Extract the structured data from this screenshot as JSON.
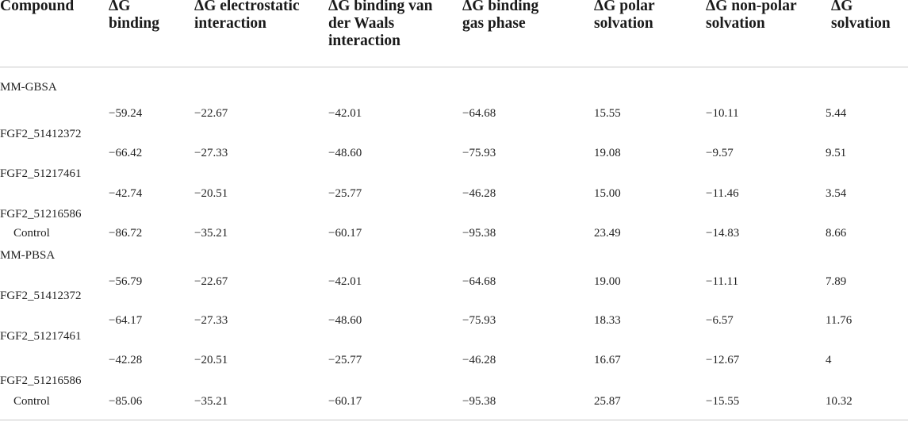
{
  "headers": [
    "ΔG\nbinding",
    "ΔG electrostatic\ninteraction",
    "ΔG binding van\nder Waals\ninteraction",
    "ΔG binding\ngas phase",
    "ΔG polar\nsolvation",
    "ΔG non-polar\nsolvation",
    "ΔG\nsolvation"
  ],
  "compound_header": "Compound",
  "sections": [
    {
      "name": "MM-GBSA",
      "rows": [
        {
          "compound": "FGF2_51412372",
          "values": [
            "−59.24",
            "−22.67",
            "−42.01",
            "−64.68",
            "15.55",
            "−10.11",
            "5.44"
          ]
        },
        {
          "compound": "FGF2_51217461",
          "values": [
            "−66.42",
            "−27.33",
            "−48.60",
            "−75.93",
            "19.08",
            "−9.57",
            "9.51"
          ]
        },
        {
          "compound": "FGF2_51216586",
          "values": [
            "−42.74",
            "−20.51",
            "−25.77",
            "−46.28",
            "15.00",
            "−11.46",
            "3.54"
          ]
        },
        {
          "compound": "Control",
          "values": [
            "−86.72",
            "−35.21",
            "−60.17",
            "−95.38",
            "23.49",
            "−14.83",
            "8.66"
          ]
        }
      ]
    },
    {
      "name": "MM-PBSA",
      "rows": [
        {
          "compound": "FGF2_51412372",
          "values": [
            "−56.79",
            "−22.67",
            "−42.01",
            "−64.68",
            "19.00",
            "−11.11",
            "7.89"
          ]
        },
        {
          "compound": "FGF2_51217461",
          "values": [
            "−64.17",
            "−27.33",
            "−48.60",
            "−75.93",
            "18.33",
            "−6.57",
            "11.76"
          ]
        },
        {
          "compound": "FGF2_51216586",
          "values": [
            "−42.28",
            "−20.51",
            "−25.77",
            "−46.28",
            "16.67",
            "−12.67",
            "4"
          ]
        },
        {
          "compound": "Control",
          "values": [
            "−85.06",
            "−35.21",
            "−60.17",
            "−95.38",
            "25.87",
            "−15.55",
            "10.32"
          ]
        }
      ]
    }
  ]
}
